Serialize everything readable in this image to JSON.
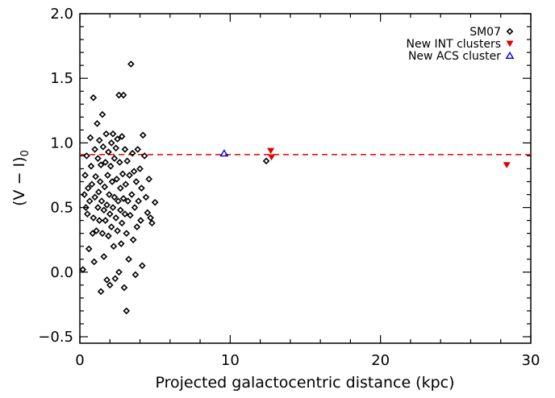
{
  "chart_data": {
    "type": "scatter",
    "title": "",
    "xlabel": "Projected galactocentric distance (kpc)",
    "ylabel_main": "(V − I)",
    "ylabel_sub": "0",
    "xlim": [
      0,
      30
    ],
    "ylim": [
      -0.55,
      2.0
    ],
    "x_ticks": [
      0,
      10,
      20,
      30
    ],
    "x_tick_labels": [
      "0",
      "10",
      "20",
      "30"
    ],
    "y_ticks": [
      -0.5,
      0.0,
      0.5,
      1.0,
      1.5,
      2.0
    ],
    "y_tick_labels": [
      "−0.5",
      "0.0",
      "0.5",
      "1.0",
      "1.5",
      "2.0"
    ],
    "grid": false,
    "legend_position": "top-right",
    "reference_line": {
      "y": 0.91,
      "style": "dashed",
      "color": "#e00000"
    },
    "series": [
      {
        "name": "SM07",
        "marker": "diamond-open",
        "color": "#000000",
        "points": [
          [
            0.2,
            0.02
          ],
          [
            0.3,
            0.6
          ],
          [
            0.35,
            0.75
          ],
          [
            0.4,
            0.5
          ],
          [
            0.45,
            0.9
          ],
          [
            0.5,
            0.45
          ],
          [
            0.55,
            0.65
          ],
          [
            0.6,
            0.18
          ],
          [
            0.65,
            0.55
          ],
          [
            0.7,
            1.04
          ],
          [
            0.75,
            0.82
          ],
          [
            0.8,
            0.68
          ],
          [
            0.85,
            0.3
          ],
          [
            0.9,
            1.35
          ],
          [
            0.9,
            0.42
          ],
          [
            0.95,
            0.08
          ],
          [
            1.0,
            0.95
          ],
          [
            1.0,
            0.58
          ],
          [
            1.05,
            0.74
          ],
          [
            1.1,
            0.32
          ],
          [
            1.15,
            1.15
          ],
          [
            1.2,
            0.5
          ],
          [
            1.2,
            0.88
          ],
          [
            1.25,
            0.62
          ],
          [
            1.3,
            1.02
          ],
          [
            1.3,
            0.4
          ],
          [
            1.35,
            0.7
          ],
          [
            1.4,
            -0.15
          ],
          [
            1.4,
            0.83
          ],
          [
            1.45,
            0.55
          ],
          [
            1.5,
            1.22
          ],
          [
            1.5,
            0.3
          ],
          [
            1.55,
            0.97
          ],
          [
            1.6,
            0.48
          ],
          [
            1.6,
            0.12
          ],
          [
            1.65,
            0.66
          ],
          [
            1.7,
            0.85
          ],
          [
            1.7,
            0.4
          ],
          [
            1.75,
            1.07
          ],
          [
            1.8,
            0.52
          ],
          [
            1.8,
            -0.06
          ],
          [
            1.85,
            0.75
          ],
          [
            1.9,
            0.93
          ],
          [
            1.9,
            0.28
          ],
          [
            1.95,
            0.6
          ],
          [
            2.0,
            -0.1
          ],
          [
            2.0,
            0.45
          ],
          [
            2.05,
            0.82
          ],
          [
            2.1,
            1.0
          ],
          [
            2.1,
            0.35
          ],
          [
            2.15,
            0.7
          ],
          [
            2.2,
            0.5
          ],
          [
            2.2,
            1.07
          ],
          [
            2.25,
            0.2
          ],
          [
            2.3,
            0.88
          ],
          [
            2.3,
            0.58
          ],
          [
            2.35,
            -0.05
          ],
          [
            2.4,
            0.42
          ],
          [
            2.4,
            0.96
          ],
          [
            2.45,
            0.72
          ],
          [
            2.5,
            1.03
          ],
          [
            2.5,
            0.32
          ],
          [
            2.55,
            0.55
          ],
          [
            2.6,
            1.37
          ],
          [
            2.6,
            0.0
          ],
          [
            2.65,
            0.85
          ],
          [
            2.7,
            0.48
          ],
          [
            2.7,
            0.65
          ],
          [
            2.75,
            0.22
          ],
          [
            2.8,
            1.05
          ],
          [
            2.8,
            0.38
          ],
          [
            2.85,
            0.76
          ],
          [
            2.9,
            1.37
          ],
          [
            2.9,
            0.57
          ],
          [
            2.95,
            -0.12
          ],
          [
            3.0,
            0.95
          ],
          [
            3.0,
            0.45
          ],
          [
            3.05,
            0.68
          ],
          [
            3.1,
            -0.3
          ],
          [
            3.1,
            0.3
          ],
          [
            3.15,
            0.86
          ],
          [
            3.2,
            0.55
          ],
          [
            3.25,
            0.1
          ],
          [
            3.3,
            0.75
          ],
          [
            3.35,
            0.44
          ],
          [
            3.4,
            1.61
          ],
          [
            3.45,
            0.6
          ],
          [
            3.5,
            0.92
          ],
          [
            3.55,
            0.25
          ],
          [
            3.6,
            0.78
          ],
          [
            3.65,
            0.5
          ],
          [
            3.7,
            -0.02
          ],
          [
            3.75,
            0.7
          ],
          [
            3.8,
            0.35
          ],
          [
            3.85,
            0.95
          ],
          [
            3.9,
            0.55
          ],
          [
            4.0,
            0.8
          ],
          [
            4.05,
            0.4
          ],
          [
            4.1,
            0.65
          ],
          [
            4.15,
            0.05
          ],
          [
            4.2,
            1.06
          ],
          [
            4.3,
            0.9
          ],
          [
            4.4,
            0.58
          ],
          [
            4.5,
            0.46
          ],
          [
            4.6,
            0.72
          ],
          [
            4.7,
            0.42
          ],
          [
            4.8,
            0.38
          ],
          [
            5.0,
            0.54
          ],
          [
            12.4,
            0.86
          ]
        ]
      },
      {
        "name": "New INT clusters",
        "marker": "triangle-down-filled",
        "color": "#e00000",
        "points": [
          [
            12.7,
            0.94
          ],
          [
            12.75,
            0.89
          ],
          [
            28.4,
            0.83
          ]
        ]
      },
      {
        "name": "New ACS cluster",
        "marker": "triangle-up-open",
        "color": "#0000dd",
        "points": [
          [
            9.6,
            0.92
          ]
        ]
      }
    ]
  }
}
